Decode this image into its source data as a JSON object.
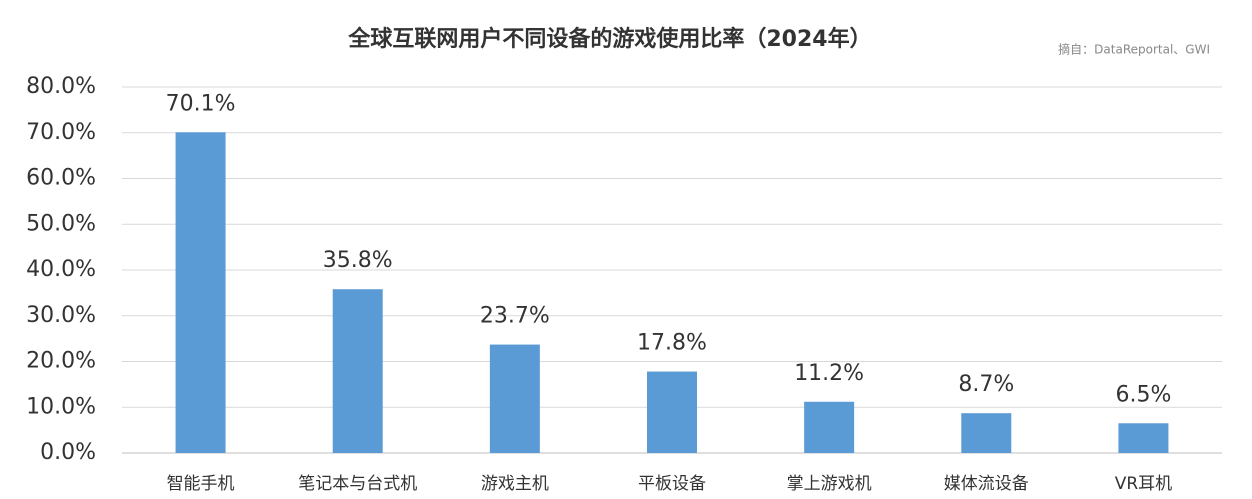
{
  "chart_data": {
    "type": "bar",
    "title": "全球互联网用户不同设备的游戏使用比率（2024年）",
    "source": "摘自：DataReportal、GWI",
    "categories": [
      "智能手机",
      "笔记本与台式机",
      "游戏主机",
      "平板设备",
      "掌上游戏机",
      "媒体流设备",
      "VR耳机"
    ],
    "values": [
      70.1,
      35.8,
      23.7,
      17.8,
      11.2,
      8.7,
      6.5
    ],
    "value_labels": [
      "70.1%",
      "35.8%",
      "23.7%",
      "17.8%",
      "11.2%",
      "8.7%",
      "6.5%"
    ],
    "color": "#5b9bd5",
    "ylim": [
      0,
      80
    ],
    "yticks": [
      {
        "value": 0,
        "label": "0.0%"
      },
      {
        "value": 10,
        "label": "10.0%"
      },
      {
        "value": 20,
        "label": "20.0%"
      },
      {
        "value": 30,
        "label": "30.0%"
      },
      {
        "value": 40,
        "label": "40.0%"
      },
      {
        "value": 50,
        "label": "50.0%"
      },
      {
        "value": 60,
        "label": "60.0%"
      },
      {
        "value": 70,
        "label": "70.0%"
      },
      {
        "value": 80,
        "label": "80.0%"
      }
    ],
    "grid": true
  }
}
